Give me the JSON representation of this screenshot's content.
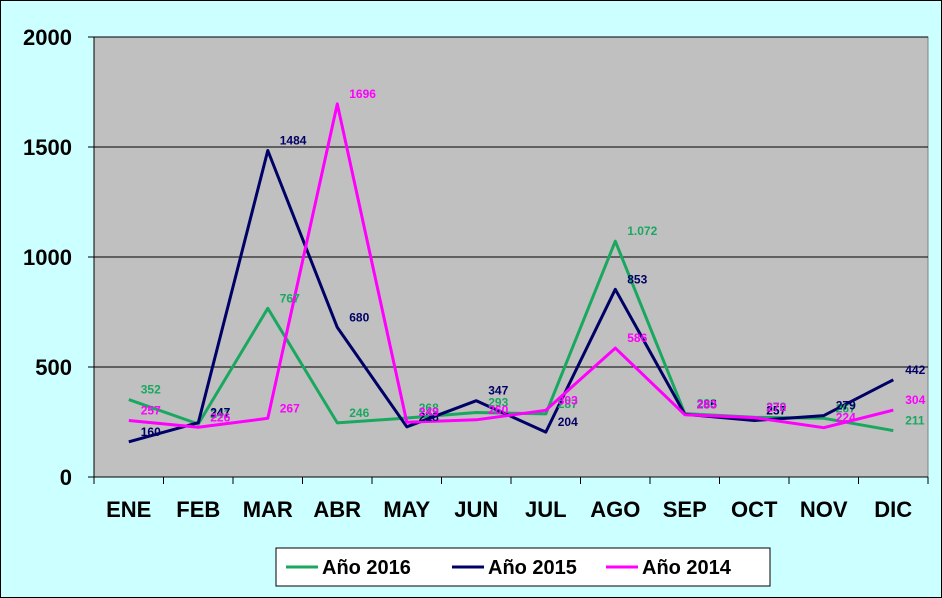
{
  "chart_data": {
    "type": "line",
    "title": "",
    "xlabel": "",
    "ylabel": "",
    "categories": [
      "ENE",
      "FEB",
      "MAR",
      "ABR",
      "MAY",
      "JUN",
      "JUL",
      "AGO",
      "SEP",
      "OCT",
      "NOV",
      "DIC"
    ],
    "ylim": [
      0,
      2000
    ],
    "yticks": [
      "0",
      "500",
      "1000",
      "1500",
      "2000"
    ],
    "ytick_values": [
      0,
      500,
      1000,
      1500,
      2000
    ],
    "grid": true,
    "legend_position": "bottom",
    "plot_background": "#c0c0c0",
    "series": [
      {
        "name": "Año 2016",
        "color": "#1aa860",
        "values": [
          352,
          241,
          767,
          246,
          268,
          293,
          287,
          1072,
          288,
          272,
          267,
          211
        ],
        "labels": [
          "352",
          "241",
          "767",
          "246",
          "268",
          "293",
          "287",
          "1.072",
          "288",
          "272",
          "267",
          "211"
        ]
      },
      {
        "name": "Año 2015",
        "color": "#000066",
        "values": [
          160,
          247,
          1484,
          680,
          228,
          347,
          204,
          853,
          285,
          257,
          279,
          442
        ],
        "labels": [
          "160",
          "247",
          "1484",
          "680",
          "228",
          "347",
          "204",
          "853",
          "285",
          "257",
          "279",
          "442"
        ]
      },
      {
        "name": "Año 2014",
        "color": "#ff00ff",
        "values": [
          257,
          226,
          267,
          1696,
          249,
          260,
          303,
          586,
          283,
          270,
          224,
          304
        ],
        "labels": [
          "257",
          "226",
          "267",
          "1696",
          "249",
          "260",
          "303",
          "586",
          "283",
          "270",
          "224",
          "304"
        ]
      }
    ]
  }
}
